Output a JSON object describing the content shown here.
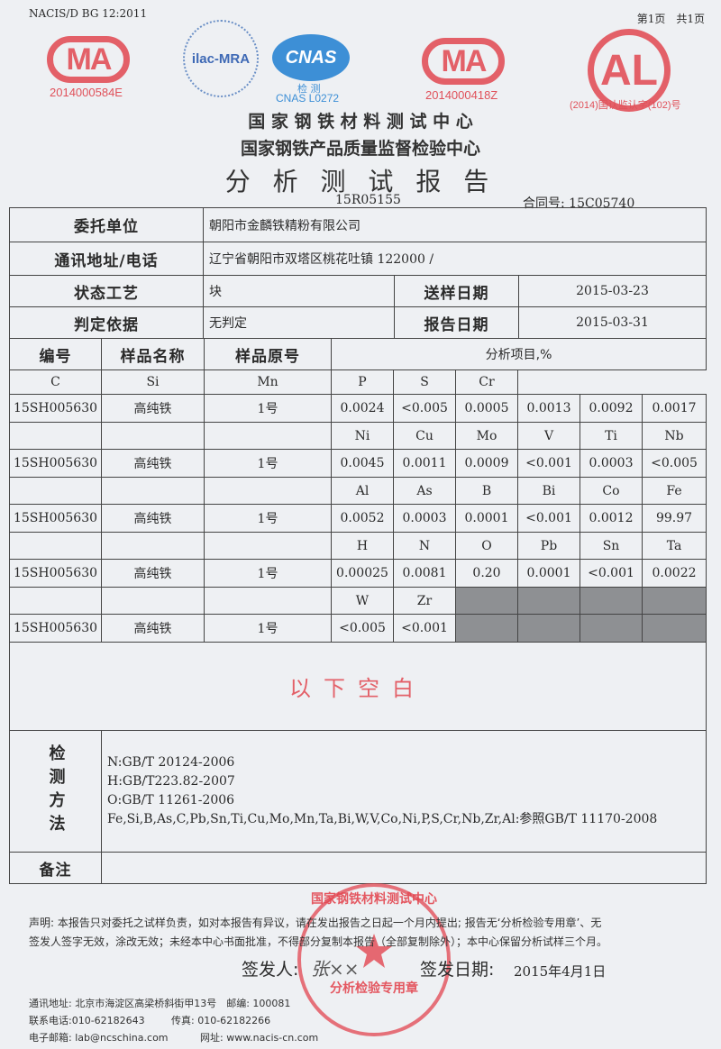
{
  "header": {
    "standard": "NACIS/D BG 12:2011",
    "page": "第1页　共1页",
    "logos": {
      "cma1": "MA",
      "cma1_code": "2014000584E",
      "ilac": "ilac-MRA",
      "cnas": "CNAS",
      "cnas_sub": "检 测",
      "cnas_code": "CNAS L0272",
      "cma2": "MA",
      "cma2_code": "2014000418Z",
      "cal": "AL",
      "cal_code": "(2014)国认监认字(102)号"
    },
    "org1": "国 家 钢 铁 材 料 测 试 中 心",
    "org2": "国家钢铁产品质量监督检验中心",
    "title": "分 析 测 试 报 告",
    "report_no": "15R05155",
    "contract_label": "合同号:",
    "contract_no": "15C05740"
  },
  "info": {
    "client_label": "委托单位",
    "client": "朝阳市金麟铁精粉有限公司",
    "address_label": "通讯地址/电话",
    "address": "辽宁省朝阳市双塔区桃花吐镇 122000 /",
    "state_label": "状态工艺",
    "state": "块",
    "send_date_label": "送样日期",
    "send_date": "2015-03-23",
    "basis_label": "判定依据",
    "basis": "无判定",
    "report_date_label": "报告日期",
    "report_date": "2015-03-31"
  },
  "table": {
    "col_id": "编号",
    "col_name": "样品名称",
    "col_orig": "样品原号",
    "col_items": "分析项目,%",
    "groups": [
      {
        "elements": [
          "C",
          "Si",
          "Mn",
          "P",
          "S",
          "Cr"
        ],
        "values": [
          "0.0024",
          "<0.005",
          "0.0005",
          "0.0013",
          "0.0092",
          "0.0017"
        ]
      },
      {
        "elements": [
          "Ni",
          "Cu",
          "Mo",
          "V",
          "Ti",
          "Nb"
        ],
        "values": [
          "0.0045",
          "0.0011",
          "0.0009",
          "<0.001",
          "0.0003",
          "<0.005"
        ]
      },
      {
        "elements": [
          "Al",
          "As",
          "B",
          "Bi",
          "Co",
          "Fe"
        ],
        "values": [
          "0.0052",
          "0.0003",
          "0.0001",
          "<0.001",
          "0.0012",
          "99.97"
        ]
      },
      {
        "elements": [
          "H",
          "N",
          "O",
          "Pb",
          "Sn",
          "Ta"
        ],
        "values": [
          "0.00025",
          "0.0081",
          "0.20",
          "0.0001",
          "<0.001",
          "0.0022"
        ]
      },
      {
        "elements": [
          "W",
          "Zr"
        ],
        "values": [
          "<0.005",
          "<0.001"
        ]
      }
    ],
    "sample_id": "15SH005630",
    "sample_name": "高纯铁",
    "sample_orig": "1号",
    "blank_note": "以下空白"
  },
  "methods": {
    "label": "检测方法",
    "lines": [
      "N:GB/T 20124-2006",
      "H:GB/T223.82-2007",
      "O:GB/T 11261-2006",
      "Fe,Si,B,As,C,Pb,Sn,Ti,Cu,Mo,Mn,Ta,Bi,W,V,Co,Ni,P,S,Cr,Nb,Zr,Al:参照GB/T 11170-2008"
    ]
  },
  "remarks_label": "备注",
  "statement": [
    "声明: 本报告只对委托之试样负责，如对本报告有异议，请在发出报告之日起一个月内提出; 报告无‘分析检验专用章’、无",
    "签发人签字无效，涂改无效；未经本中心书面批准，不得部分复制本报告（全部复制除外）；本中心保留分析试样三个月。"
  ],
  "signer_label": "签发人:",
  "signer_signature": "张××",
  "sign_date_label": "签发日期:",
  "sign_date": "2015年4月1日",
  "stamp": {
    "top": "国家钢铁材料测试中心",
    "bottom": "分析检验专用章"
  },
  "footer": {
    "address": "通讯地址: 北京市海淀区高梁桥斜街甲13号　邮编: 100081",
    "phone": "联系电话:010-62182643",
    "fax": "传真: 010-62182266",
    "email": "电子邮箱: lab@ncschina.com",
    "web": "网址: www.nacis-cn.com"
  },
  "colors": {
    "stamp": "#e0515a",
    "cnas": "#3d8fd6",
    "grey_cell": "#8e9093"
  }
}
